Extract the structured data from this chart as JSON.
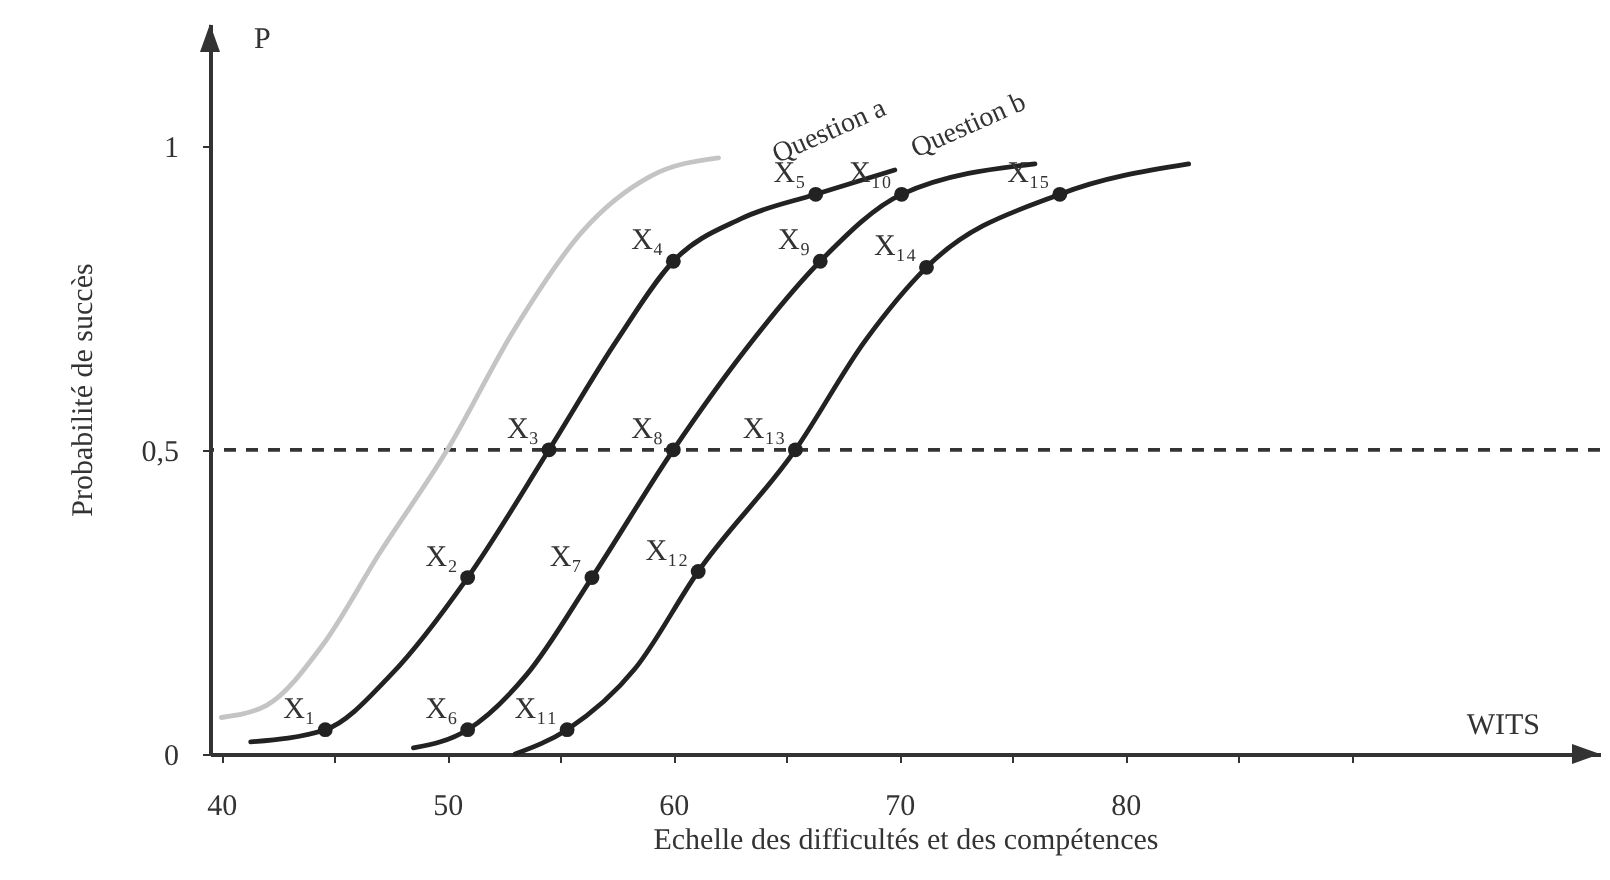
{
  "chart_data": {
    "type": "line",
    "xlabel": "Echelle des difficultés et des compétences",
    "ylabel": "Probabilité de succès",
    "xlim": [
      39.5,
      101
    ],
    "xticks": [
      40,
      {
        "value": 45,
        "label": null
      },
      50,
      {
        "value": 55,
        "label": null
      },
      60,
      {
        "value": 65,
        "label": null
      },
      70,
      {
        "value": 75,
        "label": null
      },
      80,
      {
        "value": 85,
        "label": null
      },
      {
        "value": 90,
        "label": null
      }
    ],
    "ylim": [
      0,
      1.2
    ],
    "yticks": [
      0,
      {
        "value": 0.5,
        "label": "0,5"
      },
      1
    ],
    "grid": false,
    "series": [
      {
        "color": "#c4c4c4",
        "marker": "none",
        "x": [
          40,
          42,
          44.5,
          47,
          50,
          53,
          56,
          59,
          62
        ],
        "values": [
          0.06,
          0.08,
          0.18,
          0.33,
          0.5,
          0.7,
          0.86,
          0.95,
          0.98
        ]
      },
      {
        "color": "#222222",
        "marker": "none",
        "x": [
          41.3,
          44.6,
          47.5,
          50.9,
          54.5,
          57.5,
          60,
          63,
          66.3,
          69.8
        ],
        "values": [
          0.02,
          0.04,
          0.13,
          0.29,
          0.5,
          0.68,
          0.81,
          0.88,
          0.92,
          0.96
        ]
      },
      {
        "color": "#222222",
        "marker": "none",
        "x": [
          48.5,
          50.9,
          53.5,
          56.4,
          60,
          63.3,
          66.5,
          70.1,
          76
        ],
        "values": [
          0.01,
          0.04,
          0.13,
          0.29,
          0.5,
          0.67,
          0.81,
          0.92,
          0.97
        ]
      },
      {
        "color": "#222222",
        "marker": "none",
        "x": [
          53,
          55.3,
          58.3,
          61.1,
          65.4,
          68.5,
          71.2,
          77.1,
          82.8
        ],
        "values": [
          0.0,
          0.04,
          0.14,
          0.3,
          0.5,
          0.68,
          0.8,
          0.92,
          0.97
        ]
      },
      {
        "type": "scatter",
        "color": "#222222",
        "marker": "circle",
        "x": [
          44.6,
          50.9,
          54.5,
          60,
          66.3,
          50.9,
          56.4,
          60,
          66.5,
          70.1,
          55.3,
          61.1,
          65.4,
          71.2,
          77.1
        ],
        "values": [
          0.04,
          0.29,
          0.5,
          0.81,
          0.92,
          0.04,
          0.29,
          0.5,
          0.81,
          0.92,
          0.04,
          0.3,
          0.5,
          0.8,
          0.92
        ]
      }
    ],
    "ref_lines": [
      {
        "axis": "y",
        "value": 0.5,
        "label": null,
        "color": "#333333",
        "line_style": "dashed"
      }
    ],
    "annotations": [
      {
        "text": "X₁",
        "x": 44.6,
        "y": 0.04
      },
      {
        "text": "X₂",
        "x": 50.9,
        "y": 0.29
      },
      {
        "text": "X₃",
        "x": 54.5,
        "y": 0.5
      },
      {
        "text": "X₄",
        "x": 60,
        "y": 0.81
      },
      {
        "text": "X₅",
        "x": 66.3,
        "y": 0.92
      },
      {
        "text": "X₆",
        "x": 50.9,
        "y": 0.04
      },
      {
        "text": "X₇",
        "x": 56.4,
        "y": 0.29
      },
      {
        "text": "X₈",
        "x": 60,
        "y": 0.5
      },
      {
        "text": "X₉",
        "x": 66.5,
        "y": 0.81
      },
      {
        "text": "X₁₀",
        "x": 70.1,
        "y": 0.92
      },
      {
        "text": "X₁₁",
        "x": 55.3,
        "y": 0.04
      },
      {
        "text": "X₁₂",
        "x": 61.1,
        "y": 0.3
      },
      {
        "text": "X₁₃",
        "x": 65.4,
        "y": 0.5
      },
      {
        "text": "X₁₄",
        "x": 71.2,
        "y": 0.8
      },
      {
        "text": "X₁₅",
        "x": 77.1,
        "y": 0.92
      },
      {
        "text": "Question a",
        "x": 69.8,
        "y": 0.96
      },
      {
        "text": "Question b",
        "x": 76,
        "y": 0.97
      },
      "P",
      "WITS"
    ]
  }
}
